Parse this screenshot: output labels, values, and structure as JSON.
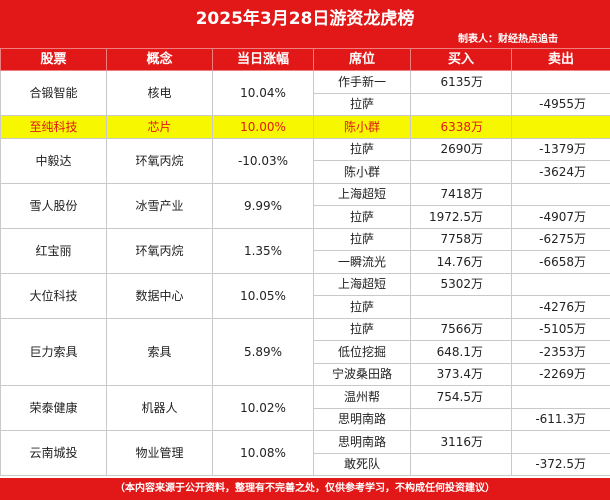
{
  "header": {
    "title": "2025年3月28日游资龙虎榜",
    "maker": "制表人：财经热点追击"
  },
  "columns": [
    "股票",
    "概念",
    "当日涨幅",
    "席位",
    "买入",
    "卖出"
  ],
  "stocks": [
    {
      "name": "合锻智能",
      "concept": "核电",
      "change": "10.04%",
      "highlight": false,
      "seats": [
        {
          "seat": "作手新一",
          "buy": "6135万",
          "sell": ""
        },
        {
          "seat": "拉萨",
          "buy": "",
          "sell": "-4955万"
        }
      ]
    },
    {
      "name": "至纯科技",
      "concept": "芯片",
      "change": "10.00%",
      "highlight": true,
      "seats": [
        {
          "seat": "陈小群",
          "buy": "6338万",
          "sell": ""
        }
      ]
    },
    {
      "name": "中毅达",
      "concept": "环氧丙烷",
      "change": "-10.03%",
      "highlight": false,
      "seats": [
        {
          "seat": "拉萨",
          "buy": "2690万",
          "sell": "-1379万"
        },
        {
          "seat": "陈小群",
          "buy": "",
          "sell": "-3624万"
        }
      ]
    },
    {
      "name": "雪人股份",
      "concept": "冰雪产业",
      "change": "9.99%",
      "highlight": false,
      "seats": [
        {
          "seat": "上海超短",
          "buy": "7418万",
          "sell": ""
        },
        {
          "seat": "拉萨",
          "buy": "1972.5万",
          "sell": "-4907万"
        }
      ]
    },
    {
      "name": "红宝丽",
      "concept": "环氧丙烷",
      "change": "1.35%",
      "highlight": false,
      "seats": [
        {
          "seat": "拉萨",
          "buy": "7758万",
          "sell": "-6275万"
        },
        {
          "seat": "一瞬流光",
          "buy": "14.76万",
          "sell": "-6658万"
        }
      ]
    },
    {
      "name": "大位科技",
      "concept": "数据中心",
      "change": "10.05%",
      "highlight": false,
      "seats": [
        {
          "seat": "上海超短",
          "buy": "5302万",
          "sell": ""
        },
        {
          "seat": "拉萨",
          "buy": "",
          "sell": "-4276万"
        }
      ]
    },
    {
      "name": "巨力索具",
      "concept": "索具",
      "change": "5.89%",
      "highlight": false,
      "seats": [
        {
          "seat": "拉萨",
          "buy": "7566万",
          "sell": "-5105万"
        },
        {
          "seat": "低位挖掘",
          "buy": "648.1万",
          "sell": "-2353万"
        },
        {
          "seat": "宁波桑田路",
          "buy": "373.4万",
          "sell": "-2269万"
        }
      ]
    },
    {
      "name": "荣泰健康",
      "concept": "机器人",
      "change": "10.02%",
      "highlight": false,
      "seats": [
        {
          "seat": "温州帮",
          "buy": "754.5万",
          "sell": ""
        },
        {
          "seat": "思明南路",
          "buy": "",
          "sell": "-611.3万"
        }
      ]
    },
    {
      "name": "云南城投",
      "concept": "物业管理",
      "change": "10.08%",
      "highlight": false,
      "seats": [
        {
          "seat": "思明南路",
          "buy": "3116万",
          "sell": ""
        },
        {
          "seat": "敢死队",
          "buy": "",
          "sell": "-372.5万"
        }
      ]
    }
  ],
  "footer": "（本内容来源于公开资料，整理有不完善之处，仅供参考学习，不构成任何投资建议）"
}
